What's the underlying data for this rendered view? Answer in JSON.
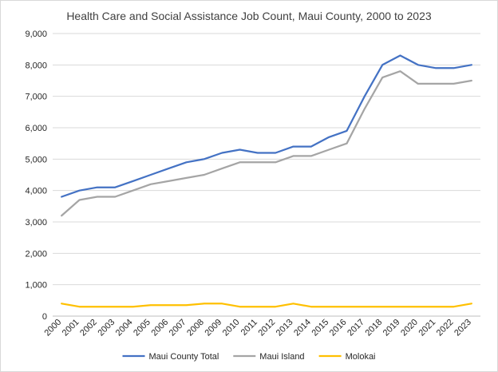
{
  "chart_data": {
    "type": "line",
    "title": "Health Care and Social Assistance Job Count, Maui County, 2000 to 2023",
    "xlabel": "",
    "ylabel": "",
    "ylim": [
      0,
      9000
    ],
    "yticks": [
      0,
      1000,
      2000,
      3000,
      4000,
      5000,
      6000,
      7000,
      8000,
      9000
    ],
    "ytick_labels": [
      "0",
      "1,000",
      "2,000",
      "3,000",
      "4,000",
      "5,000",
      "6,000",
      "7,000",
      "8,000",
      "9,000"
    ],
    "grid": true,
    "legend_position": "bottom",
    "categories": [
      "2000",
      "2001",
      "2002",
      "2003",
      "2004",
      "2005",
      "2006",
      "2007",
      "2008",
      "2009",
      "2010",
      "2011",
      "2012",
      "2013",
      "2014",
      "2015",
      "2016",
      "2017",
      "2018",
      "2019",
      "2020",
      "2021",
      "2022",
      "2023"
    ],
    "series": [
      {
        "name": "Maui County Total",
        "color": "#4472c4",
        "values": [
          3800,
          4000,
          4100,
          4100,
          4300,
          4500,
          4700,
          4900,
          5000,
          5200,
          5300,
          5200,
          5200,
          5400,
          5400,
          5700,
          5900,
          7000,
          8000,
          8300,
          8000,
          7900,
          7900,
          8000
        ]
      },
      {
        "name": "Maui Island",
        "color": "#a5a5a5",
        "values": [
          3200,
          3700,
          3800,
          3800,
          4000,
          4200,
          4300,
          4400,
          4500,
          4700,
          4900,
          4900,
          4900,
          5100,
          5100,
          5300,
          5500,
          6600,
          7600,
          7800,
          7400,
          7400,
          7400,
          7500
        ]
      },
      {
        "name": "Molokai",
        "color": "#ffc000",
        "values": [
          400,
          300,
          300,
          300,
          300,
          350,
          350,
          350,
          400,
          400,
          300,
          300,
          300,
          400,
          300,
          300,
          300,
          300,
          300,
          300,
          300,
          300,
          300,
          400
        ]
      }
    ]
  }
}
